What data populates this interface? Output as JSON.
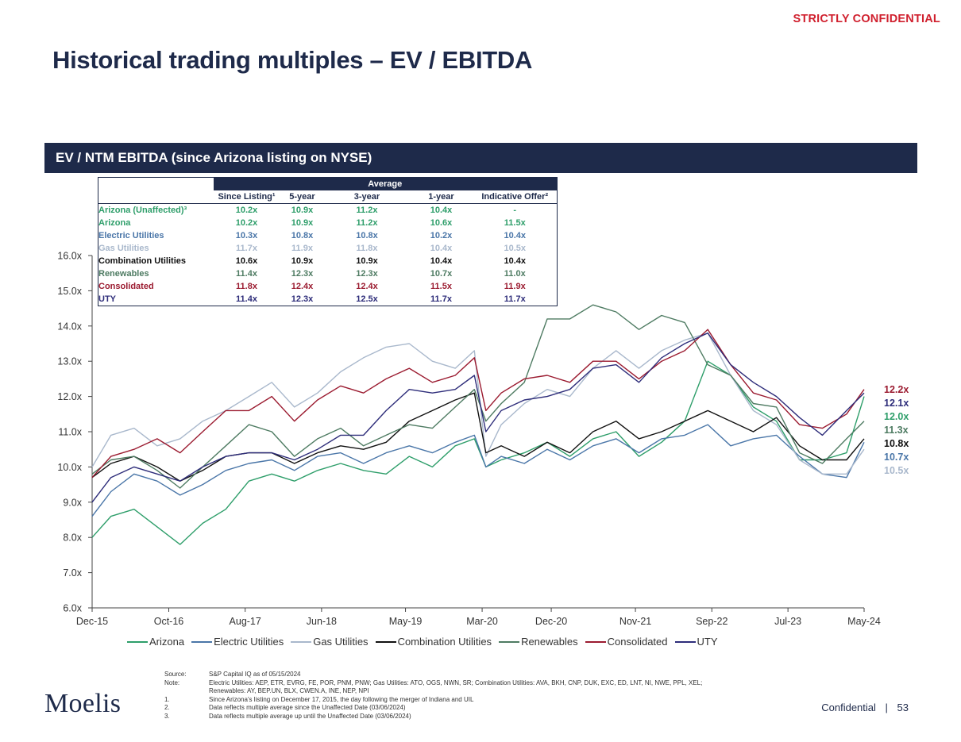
{
  "header": {
    "confidential_tag": "STRICTLY CONFIDENTIAL",
    "title": "Historical trading multiples – EV / EBITDA",
    "banner": "EV / NTM EBITDA (since Arizona listing on NYSE)"
  },
  "summary_table": {
    "group_header": "Average",
    "columns": [
      "Since Listing¹",
      "5-year",
      "3-year",
      "1-year",
      "Indicative Offer²"
    ],
    "rows": [
      {
        "label": "Arizona (Unaffected)³",
        "color": "#2e9e6a",
        "values": [
          "10.2x",
          "10.9x",
          "11.2x",
          "10.4x",
          "-"
        ]
      },
      {
        "label": "Arizona",
        "color": "#2e9e6a",
        "values": [
          "10.2x",
          "10.9x",
          "11.2x",
          "10.6x",
          "11.5x"
        ]
      },
      {
        "label": "Electric Utilities",
        "color": "#4a76a8",
        "values": [
          "10.3x",
          "10.8x",
          "10.8x",
          "10.2x",
          "10.4x"
        ]
      },
      {
        "label": "Gas Utilities",
        "color": "#a9b8cc",
        "values": [
          "11.7x",
          "11.9x",
          "11.8x",
          "10.4x",
          "10.5x"
        ]
      },
      {
        "label": "Combination Utilities",
        "color": "#111111",
        "values": [
          "10.6x",
          "10.9x",
          "10.9x",
          "10.4x",
          "10.4x"
        ]
      },
      {
        "label": "Renewables",
        "color": "#4e7b62",
        "values": [
          "11.4x",
          "12.3x",
          "12.3x",
          "10.7x",
          "11.0x"
        ]
      },
      {
        "label": "Consolidated",
        "color": "#9b1b30",
        "values": [
          "11.8x",
          "12.4x",
          "12.4x",
          "11.5x",
          "11.9x"
        ]
      },
      {
        "label": "UTY",
        "color": "#2e2d7a",
        "values": [
          "11.4x",
          "12.3x",
          "12.5x",
          "11.7x",
          "11.7x"
        ]
      }
    ]
  },
  "chart_data": {
    "type": "line",
    "ylim": [
      6.0,
      16.0
    ],
    "y_ticks": [
      "6.0x",
      "7.0x",
      "8.0x",
      "9.0x",
      "10.0x",
      "11.0x",
      "12.0x",
      "13.0x",
      "14.0x",
      "15.0x",
      "16.0x"
    ],
    "x_range": [
      "2015-12-17",
      "2024-05-15"
    ],
    "x_ticks": [
      {
        "date": "2015-12-17",
        "label": "Dec-15"
      },
      {
        "date": "2016-10-17",
        "label": "Oct-16"
      },
      {
        "date": "2017-08-17",
        "label": "Aug-17"
      },
      {
        "date": "2018-06-17",
        "label": "Jun-18"
      },
      {
        "date": "2019-05-17",
        "label": "May-19"
      },
      {
        "date": "2020-03-17",
        "label": "Mar-20"
      },
      {
        "date": "2020-12-17",
        "label": "Dec-20"
      },
      {
        "date": "2021-11-17",
        "label": "Nov-21"
      },
      {
        "date": "2022-09-17",
        "label": "Sep-22"
      },
      {
        "date": "2023-07-17",
        "label": "Jul-23"
      },
      {
        "date": "2024-05-15",
        "label": "May-24"
      }
    ],
    "x": [
      "2015-12-17",
      "2016-03-01",
      "2016-06-01",
      "2016-09-01",
      "2016-12-01",
      "2017-03-01",
      "2017-06-01",
      "2017-09-01",
      "2017-12-01",
      "2018-03-01",
      "2018-06-01",
      "2018-09-01",
      "2018-12-01",
      "2019-03-01",
      "2019-06-01",
      "2019-09-01",
      "2019-12-01",
      "2020-02-15",
      "2020-04-01",
      "2020-06-01",
      "2020-09-01",
      "2020-12-01",
      "2021-03-01",
      "2021-06-01",
      "2021-09-01",
      "2021-12-01",
      "2022-03-01",
      "2022-06-01",
      "2022-09-01",
      "2022-12-01",
      "2023-03-01",
      "2023-06-01",
      "2023-09-01",
      "2023-12-01",
      "2024-03-06",
      "2024-05-15"
    ],
    "series": [
      {
        "name": "Arizona",
        "color": "#2e9e6a",
        "end_label": "12.0x",
        "values": [
          8.0,
          8.6,
          8.8,
          8.3,
          7.8,
          8.4,
          8.8,
          9.6,
          9.8,
          9.6,
          9.9,
          10.1,
          9.9,
          9.8,
          10.3,
          10.0,
          10.6,
          10.8,
          10.0,
          10.2,
          10.4,
          10.7,
          10.3,
          10.8,
          11.0,
          10.3,
          10.7,
          11.3,
          13.0,
          12.6,
          11.7,
          11.3,
          10.2,
          10.2,
          10.4,
          12.0
        ]
      },
      {
        "name": "Electric Utilities",
        "color": "#4a76a8",
        "end_label": "10.7x",
        "values": [
          8.6,
          9.3,
          9.8,
          9.6,
          9.2,
          9.5,
          9.9,
          10.1,
          10.2,
          9.9,
          10.3,
          10.4,
          10.1,
          10.4,
          10.6,
          10.4,
          10.7,
          10.9,
          10.0,
          10.3,
          10.1,
          10.5,
          10.2,
          10.6,
          10.8,
          10.4,
          10.8,
          10.9,
          11.2,
          10.6,
          10.8,
          10.9,
          10.3,
          9.8,
          9.7,
          10.7
        ]
      },
      {
        "name": "Gas Utilities",
        "color": "#a9b8cc",
        "end_label": "10.5x",
        "values": [
          10.0,
          10.9,
          11.1,
          10.6,
          10.8,
          11.3,
          11.6,
          12.0,
          12.4,
          11.7,
          12.1,
          12.7,
          13.1,
          13.4,
          13.5,
          13.0,
          12.8,
          13.3,
          10.3,
          11.2,
          11.8,
          12.2,
          12.0,
          12.8,
          13.3,
          12.8,
          13.3,
          13.6,
          13.8,
          12.6,
          11.6,
          11.2,
          10.2,
          9.8,
          9.8,
          10.5
        ]
      },
      {
        "name": "Combination Utilities",
        "color": "#111111",
        "end_label": "10.8x",
        "values": [
          9.7,
          10.1,
          10.3,
          10.0,
          9.6,
          9.9,
          10.3,
          10.4,
          10.4,
          10.1,
          10.4,
          10.6,
          10.5,
          10.7,
          11.3,
          11.6,
          11.9,
          12.1,
          10.4,
          10.6,
          10.3,
          10.7,
          10.4,
          11.0,
          11.3,
          10.8,
          11.0,
          11.3,
          11.6,
          11.3,
          11.0,
          11.4,
          10.6,
          10.2,
          10.2,
          10.8
        ]
      },
      {
        "name": "Renewables",
        "color": "#4e7b62",
        "end_label": "11.3x",
        "values": [
          9.8,
          10.2,
          10.3,
          9.9,
          9.4,
          10.0,
          10.6,
          11.2,
          11.0,
          10.3,
          10.8,
          11.1,
          10.6,
          10.9,
          11.2,
          11.1,
          11.7,
          12.2,
          11.3,
          11.8,
          12.4,
          14.2,
          14.2,
          14.6,
          14.4,
          13.9,
          14.3,
          14.1,
          12.9,
          12.6,
          11.8,
          11.7,
          10.4,
          10.1,
          10.8,
          11.3
        ]
      },
      {
        "name": "Consolidated",
        "color": "#9b1b30",
        "end_label": "12.2x",
        "values": [
          9.7,
          10.3,
          10.5,
          10.8,
          10.4,
          11.0,
          11.6,
          11.6,
          12.0,
          11.3,
          11.9,
          12.3,
          12.1,
          12.5,
          12.8,
          12.4,
          12.6,
          13.1,
          11.6,
          12.1,
          12.5,
          12.6,
          12.4,
          13.0,
          13.0,
          12.5,
          13.0,
          13.3,
          13.9,
          12.9,
          12.1,
          11.9,
          11.2,
          11.1,
          11.5,
          12.2
        ]
      },
      {
        "name": "UTY",
        "color": "#2e2d7a",
        "end_label": "12.1x",
        "values": [
          9.0,
          9.7,
          10.0,
          9.8,
          9.6,
          10.0,
          10.3,
          10.4,
          10.4,
          10.2,
          10.5,
          10.9,
          10.9,
          11.6,
          12.2,
          12.1,
          12.2,
          12.6,
          11.0,
          11.6,
          11.9,
          12.0,
          12.2,
          12.8,
          12.9,
          12.4,
          13.1,
          13.5,
          13.8,
          12.9,
          12.4,
          12.0,
          11.4,
          10.9,
          11.6,
          12.1
        ]
      }
    ]
  },
  "notes": {
    "rows": [
      {
        "key": "Source:",
        "text": "S&P Capital IQ as of 05/15/2024"
      },
      {
        "key": "Note:",
        "text": "Electric Utilities: AEP, ETR, EVRG, FE, POR, PNM, PNW; Gas Utilities: ATO, OGS, NWN, SR; Combination Utilities: AVA, BKH, CNP, DUK, EXC, ED, LNT, NI, NWE, PPL, XEL;"
      },
      {
        "key": "",
        "text": "Renewables: AY, BEP.UN, BLX, CWEN.A, INE, NEP, NPI"
      },
      {
        "key": "1.",
        "text": "Since Arizona’s listing on December 17, 2015, the day following the merger of Indiana and UIL"
      },
      {
        "key": "2.",
        "text": "Data reflects multiple average since the Unaffected Date (03/06/2024)"
      },
      {
        "key": "3.",
        "text": "Data reflects multiple average up until the Unaffected Date (03/06/2024)"
      }
    ]
  },
  "footer": {
    "logo": "Moelis",
    "confidential": "Confidential",
    "separator": "|",
    "page_number": "53"
  }
}
